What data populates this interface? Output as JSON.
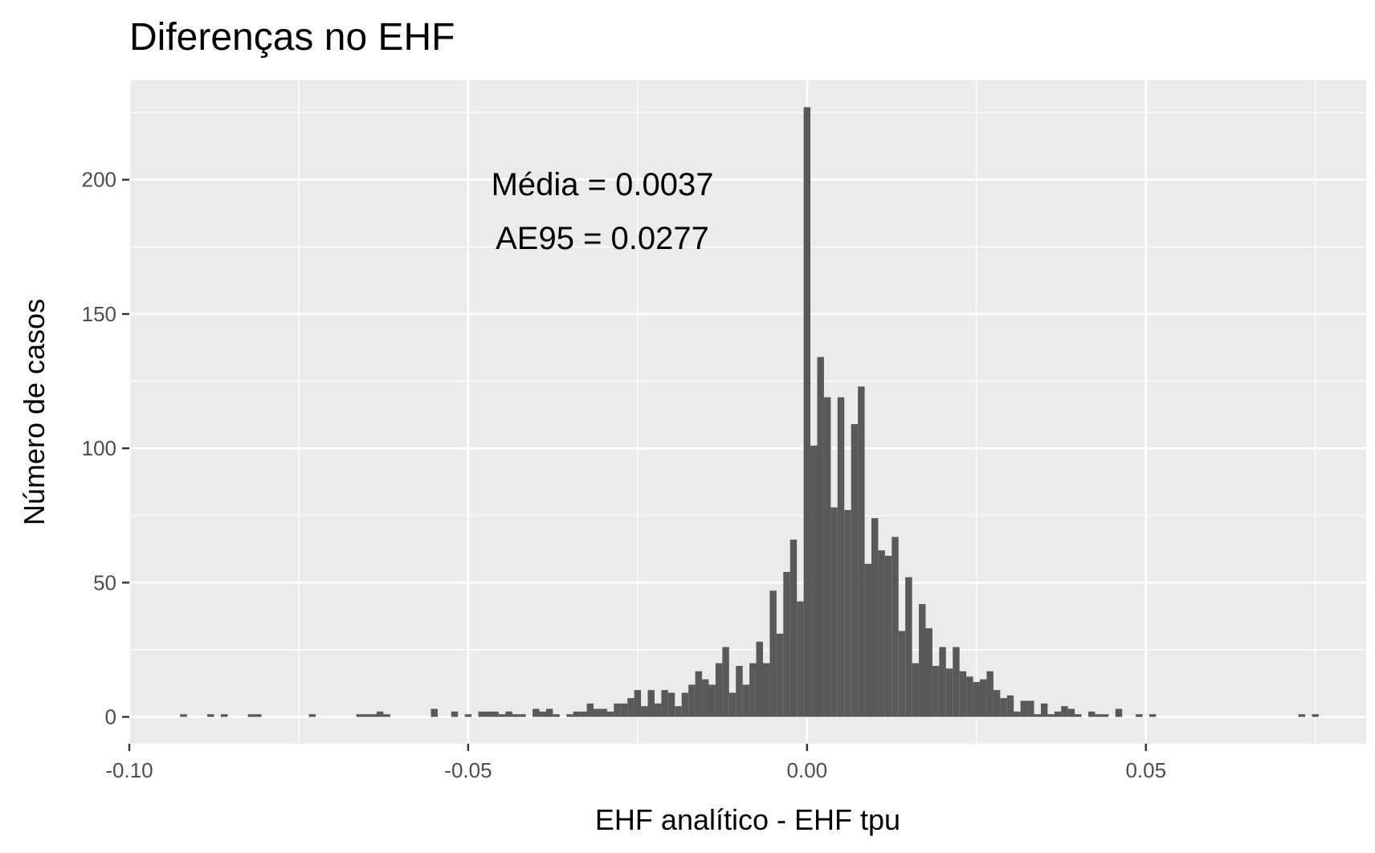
{
  "chart_data": {
    "type": "bar",
    "title": "Diferenças no EHF",
    "xlabel": "EHF analítico - EHF tpu",
    "ylabel": "Número de casos",
    "xlim": [
      -0.1,
      0.0825
    ],
    "ylim": [
      -10,
      237
    ],
    "x_ticks": [
      -0.1,
      -0.05,
      0.0,
      0.05
    ],
    "x_tick_labels": [
      "-0.10",
      "-0.05",
      "0.00",
      "0.05"
    ],
    "y_ticks": [
      0,
      50,
      100,
      150,
      200
    ],
    "y_tick_labels": [
      "0",
      "50",
      "100",
      "150",
      "200"
    ],
    "grid": true,
    "legend": "none",
    "bin_width": 0.001,
    "annotations": [
      "Média = 0.0037",
      "AE95 = 0.0277"
    ],
    "colors": {
      "bar": "#595959",
      "panel": "#ebebeb",
      "grid": "#ffffff"
    },
    "bins": [
      {
        "x": -0.092,
        "y": 1
      },
      {
        "x": -0.088,
        "y": 1
      },
      {
        "x": -0.086,
        "y": 1
      },
      {
        "x": -0.082,
        "y": 1
      },
      {
        "x": -0.081,
        "y": 1
      },
      {
        "x": -0.073,
        "y": 1
      },
      {
        "x": -0.066,
        "y": 1
      },
      {
        "x": -0.065,
        "y": 1
      },
      {
        "x": -0.064,
        "y": 1
      },
      {
        "x": -0.063,
        "y": 2
      },
      {
        "x": -0.062,
        "y": 1
      },
      {
        "x": -0.055,
        "y": 3
      },
      {
        "x": -0.052,
        "y": 2
      },
      {
        "x": -0.05,
        "y": 1
      },
      {
        "x": -0.048,
        "y": 2
      },
      {
        "x": -0.047,
        "y": 2
      },
      {
        "x": -0.046,
        "y": 2
      },
      {
        "x": -0.045,
        "y": 1
      },
      {
        "x": -0.044,
        "y": 2
      },
      {
        "x": -0.043,
        "y": 1
      },
      {
        "x": -0.042,
        "y": 1
      },
      {
        "x": -0.04,
        "y": 3
      },
      {
        "x": -0.039,
        "y": 2
      },
      {
        "x": -0.038,
        "y": 3
      },
      {
        "x": -0.037,
        "y": 1
      },
      {
        "x": -0.035,
        "y": 1
      },
      {
        "x": -0.034,
        "y": 2
      },
      {
        "x": -0.033,
        "y": 2
      },
      {
        "x": -0.032,
        "y": 5
      },
      {
        "x": -0.031,
        "y": 3
      },
      {
        "x": -0.03,
        "y": 3
      },
      {
        "x": -0.029,
        "y": 2
      },
      {
        "x": -0.028,
        "y": 5
      },
      {
        "x": -0.027,
        "y": 5
      },
      {
        "x": -0.026,
        "y": 7
      },
      {
        "x": -0.025,
        "y": 10
      },
      {
        "x": -0.024,
        "y": 4
      },
      {
        "x": -0.023,
        "y": 10
      },
      {
        "x": -0.022,
        "y": 5
      },
      {
        "x": -0.021,
        "y": 10
      },
      {
        "x": -0.02,
        "y": 9
      },
      {
        "x": -0.019,
        "y": 4
      },
      {
        "x": -0.018,
        "y": 9
      },
      {
        "x": -0.017,
        "y": 12
      },
      {
        "x": -0.016,
        "y": 17
      },
      {
        "x": -0.015,
        "y": 14
      },
      {
        "x": -0.014,
        "y": 12
      },
      {
        "x": -0.013,
        "y": 20
      },
      {
        "x": -0.012,
        "y": 26
      },
      {
        "x": -0.011,
        "y": 9
      },
      {
        "x": -0.01,
        "y": 19
      },
      {
        "x": -0.009,
        "y": 12
      },
      {
        "x": -0.008,
        "y": 20
      },
      {
        "x": -0.007,
        "y": 28
      },
      {
        "x": -0.006,
        "y": 20
      },
      {
        "x": -0.005,
        "y": 47
      },
      {
        "x": -0.004,
        "y": 31
      },
      {
        "x": -0.003,
        "y": 54
      },
      {
        "x": -0.002,
        "y": 66
      },
      {
        "x": -0.001,
        "y": 43
      },
      {
        "x": 0.0,
        "y": 227
      },
      {
        "x": 0.001,
        "y": 101
      },
      {
        "x": 0.002,
        "y": 134
      },
      {
        "x": 0.003,
        "y": 119
      },
      {
        "x": 0.004,
        "y": 78
      },
      {
        "x": 0.005,
        "y": 119
      },
      {
        "x": 0.006,
        "y": 77
      },
      {
        "x": 0.007,
        "y": 109
      },
      {
        "x": 0.008,
        "y": 123
      },
      {
        "x": 0.009,
        "y": 57
      },
      {
        "x": 0.01,
        "y": 74
      },
      {
        "x": 0.011,
        "y": 62
      },
      {
        "x": 0.012,
        "y": 60
      },
      {
        "x": 0.013,
        "y": 67
      },
      {
        "x": 0.014,
        "y": 32
      },
      {
        "x": 0.015,
        "y": 52
      },
      {
        "x": 0.016,
        "y": 20
      },
      {
        "x": 0.017,
        "y": 42
      },
      {
        "x": 0.018,
        "y": 33
      },
      {
        "x": 0.019,
        "y": 19
      },
      {
        "x": 0.02,
        "y": 26
      },
      {
        "x": 0.021,
        "y": 18
      },
      {
        "x": 0.022,
        "y": 26
      },
      {
        "x": 0.023,
        "y": 17
      },
      {
        "x": 0.024,
        "y": 15
      },
      {
        "x": 0.025,
        "y": 13
      },
      {
        "x": 0.026,
        "y": 14
      },
      {
        "x": 0.027,
        "y": 17
      },
      {
        "x": 0.028,
        "y": 10
      },
      {
        "x": 0.029,
        "y": 7
      },
      {
        "x": 0.03,
        "y": 8
      },
      {
        "x": 0.031,
        "y": 2
      },
      {
        "x": 0.032,
        "y": 6
      },
      {
        "x": 0.033,
        "y": 6
      },
      {
        "x": 0.034,
        "y": 1
      },
      {
        "x": 0.035,
        "y": 5
      },
      {
        "x": 0.036,
        "y": 1
      },
      {
        "x": 0.037,
        "y": 2
      },
      {
        "x": 0.038,
        "y": 4
      },
      {
        "x": 0.039,
        "y": 3
      },
      {
        "x": 0.04,
        "y": 1
      },
      {
        "x": 0.042,
        "y": 2
      },
      {
        "x": 0.043,
        "y": 1
      },
      {
        "x": 0.044,
        "y": 1
      },
      {
        "x": 0.046,
        "y": 3
      },
      {
        "x": 0.049,
        "y": 1
      },
      {
        "x": 0.051,
        "y": 1
      },
      {
        "x": 0.073,
        "y": 1
      },
      {
        "x": 0.075,
        "y": 1
      }
    ]
  }
}
